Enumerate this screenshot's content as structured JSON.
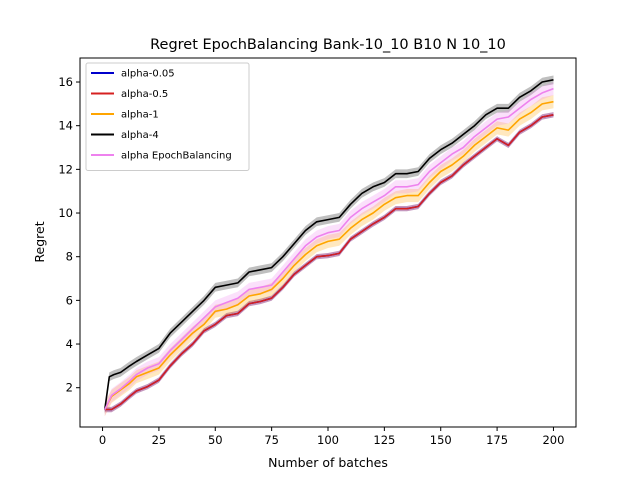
{
  "chart_data": {
    "type": "line",
    "title": "Regret EpochBalancing Bank-10_10 B10 N 10_10",
    "xlabel": "Number of batches",
    "ylabel": "Regret",
    "xlim": [
      -10,
      210
    ],
    "ylim": [
      0.2,
      17.1
    ],
    "xticks": [
      0,
      25,
      50,
      75,
      100,
      125,
      150,
      175,
      200
    ],
    "yticks": [
      2,
      4,
      6,
      8,
      10,
      12,
      14,
      16
    ],
    "grid": false,
    "legend_position": "top-left",
    "series": [
      {
        "name": "alpha-0.05",
        "color": "#0000cc",
        "band": 0.12,
        "x": [
          1,
          4,
          8,
          12,
          15,
          20,
          25,
          30,
          35,
          40,
          45,
          50,
          55,
          60,
          65,
          70,
          75,
          80,
          85,
          90,
          95,
          100,
          105,
          110,
          115,
          120,
          125,
          130,
          135,
          140,
          145,
          150,
          155,
          160,
          165,
          170,
          175,
          180,
          185,
          190,
          195,
          200
        ],
        "y": [
          1.0,
          1.0,
          1.25,
          1.6,
          1.85,
          2.05,
          2.35,
          3.0,
          3.55,
          4.0,
          4.6,
          4.9,
          5.3,
          5.4,
          5.85,
          5.95,
          6.1,
          6.6,
          7.2,
          7.6,
          8.0,
          8.05,
          8.15,
          8.8,
          9.15,
          9.5,
          9.8,
          10.2,
          10.2,
          10.3,
          10.9,
          11.4,
          11.7,
          12.2,
          12.6,
          13.0,
          13.4,
          13.1,
          13.7,
          14.0,
          14.4,
          14.5
        ]
      },
      {
        "name": "alpha-0.5",
        "color": "#d62020",
        "band": 0.12,
        "x": [
          1,
          4,
          8,
          12,
          15,
          20,
          25,
          30,
          35,
          40,
          45,
          50,
          55,
          60,
          65,
          70,
          75,
          80,
          85,
          90,
          95,
          100,
          105,
          110,
          115,
          120,
          125,
          130,
          135,
          140,
          145,
          150,
          155,
          160,
          165,
          170,
          175,
          180,
          185,
          190,
          195,
          200
        ],
        "y": [
          1.0,
          1.0,
          1.25,
          1.6,
          1.85,
          2.05,
          2.35,
          3.0,
          3.55,
          4.0,
          4.6,
          4.9,
          5.3,
          5.4,
          5.85,
          5.95,
          6.1,
          6.6,
          7.2,
          7.6,
          8.0,
          8.05,
          8.15,
          8.8,
          9.15,
          9.5,
          9.8,
          10.2,
          10.2,
          10.3,
          10.9,
          11.4,
          11.7,
          12.2,
          12.6,
          13.0,
          13.4,
          13.1,
          13.7,
          14.0,
          14.4,
          14.5
        ]
      },
      {
        "name": "alpha-1",
        "color": "#ffa500",
        "band": 0.3,
        "x": [
          1,
          4,
          8,
          12,
          15,
          20,
          25,
          30,
          35,
          40,
          45,
          50,
          55,
          60,
          65,
          70,
          75,
          80,
          85,
          90,
          95,
          100,
          105,
          110,
          115,
          120,
          125,
          130,
          135,
          140,
          145,
          150,
          155,
          160,
          165,
          170,
          175,
          180,
          185,
          190,
          195,
          200
        ],
        "y": [
          1.0,
          1.6,
          1.9,
          2.2,
          2.5,
          2.7,
          2.9,
          3.5,
          4.0,
          4.5,
          4.9,
          5.5,
          5.6,
          5.8,
          6.2,
          6.3,
          6.5,
          7.0,
          7.6,
          8.1,
          8.5,
          8.7,
          8.8,
          9.3,
          9.7,
          10.0,
          10.4,
          10.7,
          10.8,
          10.8,
          11.4,
          11.9,
          12.2,
          12.6,
          13.1,
          13.5,
          13.9,
          13.8,
          14.3,
          14.6,
          15.0,
          15.1
        ]
      },
      {
        "name": "alpha-4",
        "color": "#000000",
        "band": 0.2,
        "x": [
          1,
          3,
          5,
          8,
          12,
          15,
          20,
          25,
          30,
          35,
          40,
          45,
          50,
          55,
          60,
          65,
          70,
          75,
          80,
          85,
          90,
          95,
          100,
          105,
          110,
          115,
          120,
          125,
          130,
          135,
          140,
          145,
          150,
          155,
          160,
          165,
          170,
          175,
          180,
          185,
          190,
          195,
          200
        ],
        "y": [
          1.0,
          2.5,
          2.6,
          2.7,
          3.0,
          3.2,
          3.5,
          3.8,
          4.5,
          5.0,
          5.5,
          6.0,
          6.6,
          6.7,
          6.8,
          7.3,
          7.4,
          7.5,
          8.0,
          8.6,
          9.2,
          9.6,
          9.7,
          9.8,
          10.4,
          10.9,
          11.2,
          11.4,
          11.8,
          11.8,
          11.9,
          12.5,
          12.9,
          13.2,
          13.6,
          14.0,
          14.5,
          14.8,
          14.8,
          15.3,
          15.6,
          16.0,
          16.1
        ]
      },
      {
        "name": "alpha EpochBalancing",
        "color": "#ee82ee",
        "band": 0.3,
        "x": [
          1,
          4,
          8,
          12,
          15,
          20,
          25,
          30,
          35,
          40,
          45,
          50,
          55,
          60,
          65,
          70,
          75,
          80,
          85,
          90,
          95,
          100,
          105,
          110,
          115,
          120,
          125,
          130,
          135,
          140,
          145,
          150,
          155,
          160,
          165,
          170,
          175,
          180,
          185,
          190,
          195,
          200
        ],
        "y": [
          1.0,
          1.65,
          1.95,
          2.3,
          2.6,
          2.9,
          3.1,
          3.7,
          4.2,
          4.7,
          5.2,
          5.7,
          5.9,
          6.1,
          6.5,
          6.6,
          6.7,
          7.3,
          7.9,
          8.5,
          8.9,
          9.1,
          9.2,
          9.8,
          10.2,
          10.5,
          10.8,
          11.2,
          11.2,
          11.3,
          11.9,
          12.3,
          12.7,
          13.0,
          13.5,
          13.9,
          14.3,
          14.4,
          14.8,
          15.2,
          15.5,
          15.7
        ]
      }
    ]
  }
}
